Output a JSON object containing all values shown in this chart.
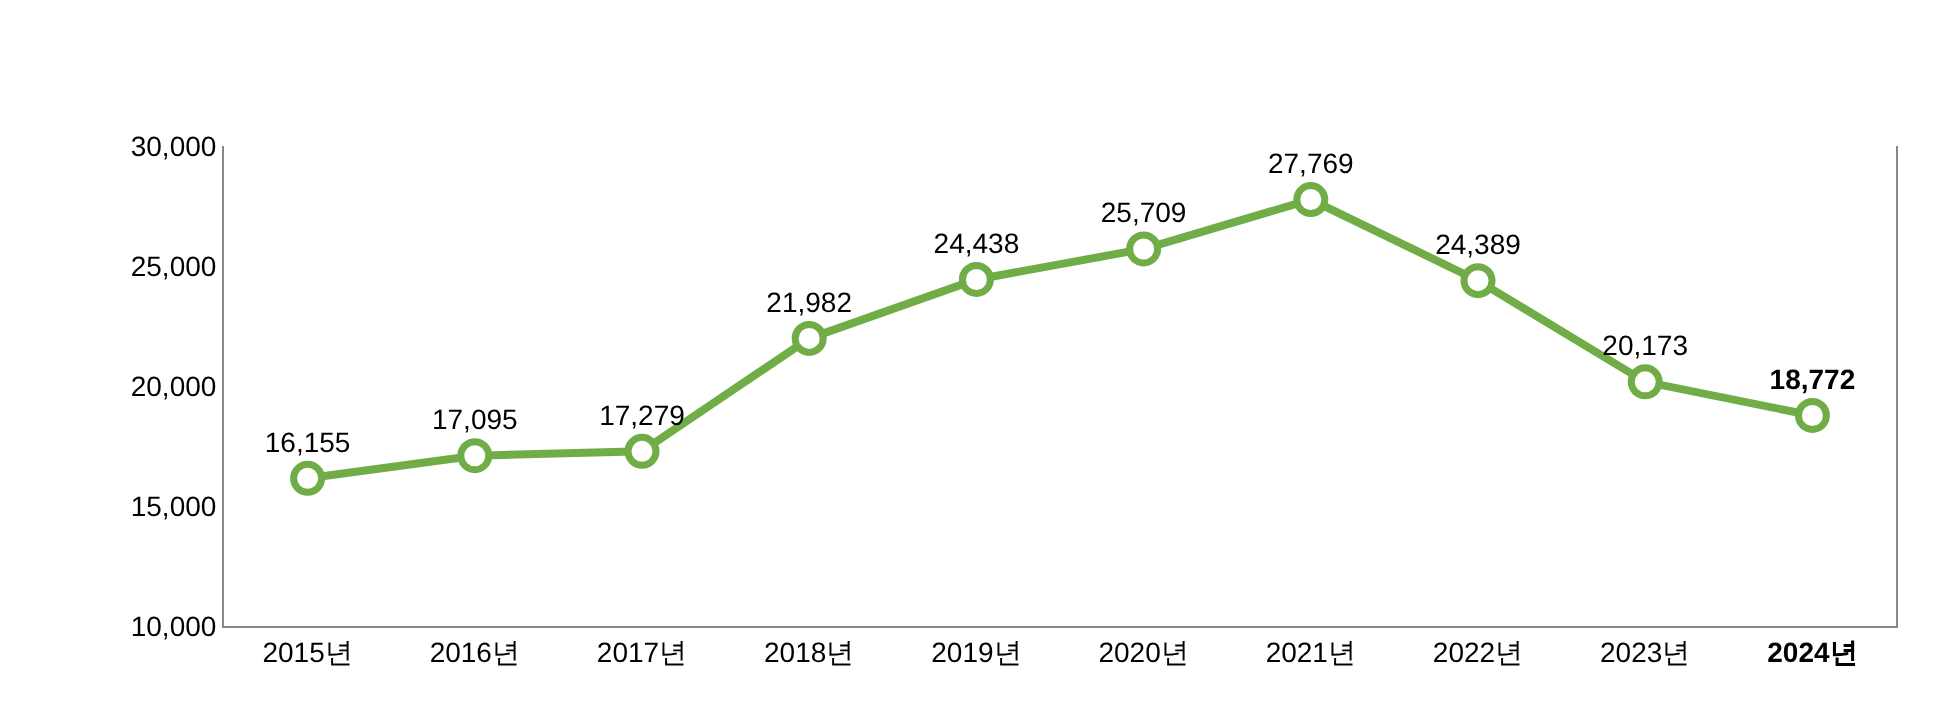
{
  "chart_data": {
    "type": "line",
    "categories": [
      "2015년",
      "2016년",
      "2017년",
      "2018년",
      "2019년",
      "2020년",
      "2021년",
      "2022년",
      "2023년",
      "2024년"
    ],
    "series": [
      {
        "color": "#70ad47",
        "values": [
          16155,
          17095,
          17279,
          21982,
          24438,
          25709,
          27769,
          24389,
          20173,
          18772
        ],
        "value_labels": [
          "16,155",
          "17,095",
          "17,279",
          "21,982",
          "24,438",
          "25,709",
          "27,769",
          "24,389",
          "20,173",
          "18,772"
        ]
      }
    ],
    "ylim": [
      10000,
      30000
    ],
    "yticks": [
      {
        "value": 10000,
        "label": "10,000"
      },
      {
        "value": 15000,
        "label": "15,000"
      },
      {
        "value": 20000,
        "label": "20,000"
      },
      {
        "value": 25000,
        "label": "25,000"
      },
      {
        "value": 30000,
        "label": "30,000"
      }
    ],
    "grid": false,
    "marker": "circle",
    "line_style": "solid"
  }
}
